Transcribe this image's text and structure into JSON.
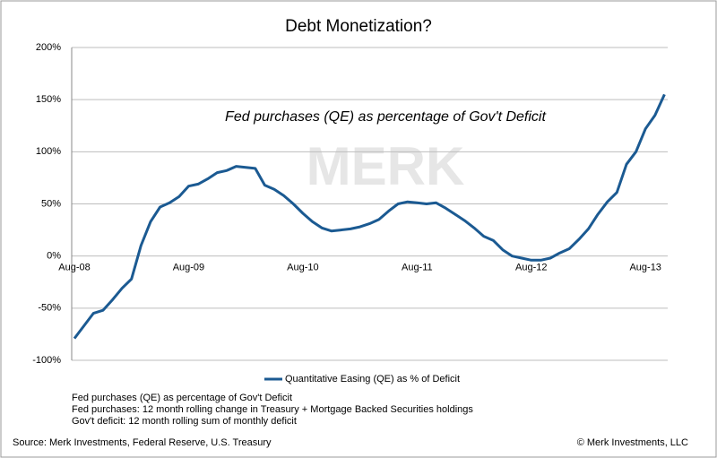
{
  "chart_data": {
    "type": "line",
    "title": "Debt Monetization?",
    "annotation": "Fed purchases (QE) as percentage of Gov't Deficit",
    "watermark": "MERK",
    "categories": [
      "Aug-08",
      null,
      null,
      null,
      null,
      null,
      null,
      null,
      null,
      null,
      null,
      null,
      "Aug-09",
      null,
      null,
      null,
      null,
      null,
      null,
      null,
      null,
      null,
      null,
      null,
      "Aug-10",
      null,
      null,
      null,
      null,
      null,
      null,
      null,
      null,
      null,
      null,
      null,
      "Aug-11",
      null,
      null,
      null,
      null,
      null,
      null,
      null,
      null,
      null,
      null,
      null,
      "Aug-12",
      null,
      null,
      null,
      null,
      null,
      null,
      null,
      null,
      null,
      null,
      null,
      "Aug-13",
      null,
      null
    ],
    "series": [
      {
        "name": "Quantitative Easing (QE) as % of Deficit",
        "color": "#1b5a92",
        "values": [
          -79,
          -67,
          -55,
          -52,
          -42,
          -31,
          -22,
          10,
          33,
          47,
          51,
          57,
          67,
          69,
          74,
          80,
          82,
          86,
          85,
          84,
          68,
          64,
          58,
          50,
          41,
          33,
          27,
          24,
          25,
          26,
          28,
          31,
          35,
          43,
          50,
          52,
          51,
          50,
          51,
          46,
          40,
          34,
          27,
          19,
          15,
          6,
          0,
          -2,
          -4,
          -4,
          -2,
          3,
          7,
          16,
          26,
          40,
          52,
          61,
          88,
          100,
          122,
          135,
          155
        ]
      }
    ],
    "ylim": [
      -100,
      200
    ],
    "yticks": [
      {
        "value": -100,
        "label": "-100%"
      },
      {
        "value": -50,
        "label": "-50%"
      },
      {
        "value": 0,
        "label": "0%"
      },
      {
        "value": 50,
        "label": "50%"
      },
      {
        "value": 100,
        "label": "100%"
      },
      {
        "value": 150,
        "label": "150%"
      },
      {
        "value": 200,
        "label": "200%"
      }
    ],
    "grid": true,
    "legend": "bottom",
    "notes": [
      "Fed purchases (QE) as percentage of Gov't Deficit",
      "Fed purchases: 12 month rolling change in Treasury + Mortgage Backed Securities holdings",
      "Gov't deficit: 12 month rolling sum of monthly deficit"
    ],
    "source": "Source: Merk Investments, Federal Reserve, U.S. Treasury",
    "copyright": "© Merk Investments, LLC"
  }
}
